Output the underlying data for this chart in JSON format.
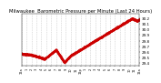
{
  "title": "Milwaukee  Barometric Pressure per Minute (Last 24 Hours)",
  "title_fontsize": 3.8,
  "line_color": "#cc0000",
  "bg_color": "#ffffff",
  "grid_color": "#c0c0c0",
  "ylim": [
    29.35,
    30.28
  ],
  "yticks": [
    29.4,
    29.5,
    29.6,
    29.7,
    29.8,
    29.9,
    30.0,
    30.1,
    30.2
  ],
  "ytick_fontsize": 3.0,
  "xtick_fontsize": 2.5,
  "num_points": 1440,
  "marker_size": 0.5,
  "x_labels": [
    "12a",
    "1",
    "2",
    "3",
    "4",
    "5",
    "6",
    "7",
    "8",
    "9",
    "10",
    "11",
    "12p",
    "1",
    "2",
    "3",
    "4",
    "5",
    "6",
    "7",
    "8",
    "9",
    "10",
    "11",
    "12a"
  ]
}
